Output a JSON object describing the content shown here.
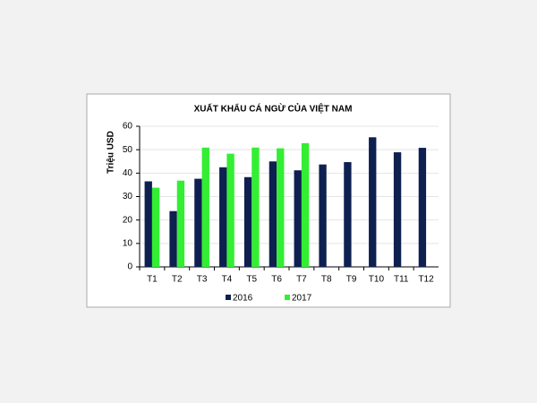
{
  "chart_data": {
    "type": "bar",
    "title": "XUẤT KHẨU CÁ NGỪ CỦA VIỆT NAM",
    "y_label": "Triệu USD",
    "categories": [
      "T1",
      "T2",
      "T3",
      "T4",
      "T5",
      "T6",
      "T7",
      "T8",
      "T9",
      "T10",
      "T11",
      "T12"
    ],
    "series": [
      {
        "name": "2016",
        "color": "#0d2050",
        "values": [
          36.5,
          23.8,
          37.6,
          42.5,
          38.3,
          45,
          41.2,
          43.7,
          44.7,
          55.3,
          48.9,
          50.8
        ]
      },
      {
        "name": "2017",
        "color": "#33ee33",
        "values": [
          33.8,
          36.8,
          50.9,
          48.3,
          50.9,
          50.6,
          52.8,
          null,
          null,
          null,
          null,
          null
        ]
      }
    ],
    "ylim": [
      0,
      60
    ],
    "yticks": [
      0,
      10,
      20,
      30,
      40,
      50,
      60
    ],
    "grid": true,
    "legend": "bottom"
  }
}
